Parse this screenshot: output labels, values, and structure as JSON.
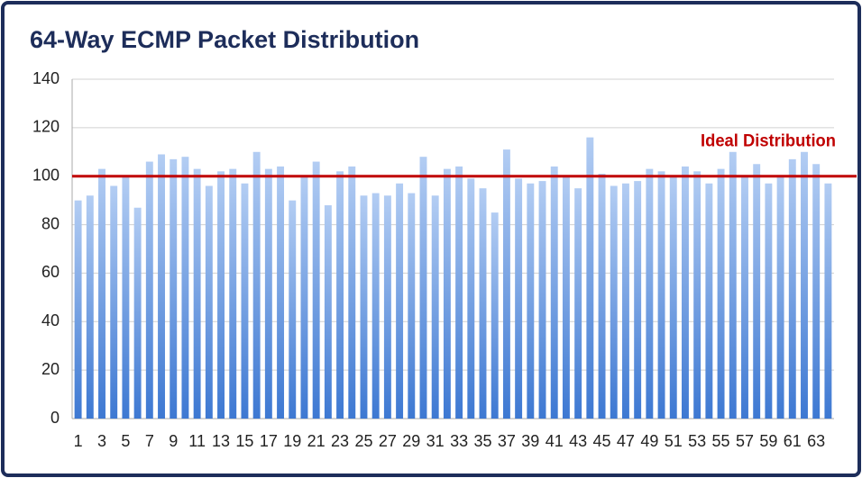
{
  "chart_data": {
    "type": "bar",
    "title": "64-Way ECMP Packet Distribution",
    "categories": [
      "1",
      null,
      "3",
      null,
      "5",
      null,
      "7",
      null,
      "9",
      null,
      "11",
      null,
      "13",
      null,
      "15",
      null,
      "17",
      null,
      "19",
      null,
      "21",
      null,
      "23",
      null,
      "25",
      null,
      "27",
      null,
      "29",
      null,
      "31",
      null,
      "33",
      null,
      "35",
      null,
      "37",
      null,
      "39",
      null,
      "41",
      null,
      "43",
      null,
      "45",
      null,
      "47",
      null,
      "49",
      null,
      "51",
      null,
      "53",
      null,
      "55",
      null,
      "57",
      null,
      "59",
      null,
      "61",
      null,
      "63",
      null
    ],
    "values": [
      90,
      92,
      103,
      96,
      100,
      87,
      106,
      109,
      107,
      108,
      103,
      96,
      102,
      103,
      97,
      110,
      103,
      104,
      90,
      100,
      106,
      88,
      102,
      104,
      92,
      93,
      92,
      97,
      93,
      108,
      92,
      103,
      104,
      99,
      95,
      85,
      111,
      99,
      97,
      98,
      104,
      100,
      95,
      116,
      101,
      96,
      97,
      98,
      103,
      102,
      100,
      104,
      102,
      97,
      103,
      110,
      100,
      105,
      97,
      100,
      107,
      110,
      105,
      97
    ],
    "color": "#5b8fdc",
    "ylim": [
      0,
      140
    ],
    "yticks": [
      0,
      20,
      40,
      60,
      80,
      100,
      120,
      140
    ],
    "grid": true,
    "reference_line": {
      "value": 100,
      "label": "Ideal Distribution",
      "color": "#c00000"
    }
  }
}
